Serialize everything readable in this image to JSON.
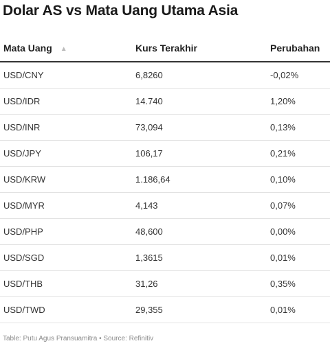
{
  "title": "Dolar AS vs Mata Uang Utama Asia",
  "colors": {
    "text": "#222222",
    "header_rule": "#333333",
    "row_rule": "#e2e2e2",
    "footer": "#8a8a8a"
  },
  "icons": {
    "sort": "sort-ascending-icon"
  },
  "chart_data": {
    "type": "table",
    "title": "Dolar AS vs Mata Uang Utama Asia",
    "columns": [
      "Mata Uang",
      "Kurs Terakhir",
      "Perubahan"
    ],
    "sorted_by": "Mata Uang",
    "rows": [
      [
        "USD/CNY",
        "6,8260",
        "-0,02%"
      ],
      [
        "USD/IDR",
        "14.740",
        "1,20%"
      ],
      [
        "USD/INR",
        "73,094",
        "0,13%"
      ],
      [
        "USD/JPY",
        "106,17",
        "0,21%"
      ],
      [
        "USD/KRW",
        "1.186,64",
        "0,10%"
      ],
      [
        "USD/MYR",
        "4,143",
        "0,07%"
      ],
      [
        "USD/PHP",
        "48,600",
        "0,00%"
      ],
      [
        "USD/SGD",
        "1,3615",
        "0,01%"
      ],
      [
        "USD/THB",
        "31,26",
        "0,35%"
      ],
      [
        "USD/TWD",
        "29,355",
        "0,01%"
      ]
    ]
  },
  "footer": "Table: Putu Agus Pransuamitra • Source: Refinitiv"
}
